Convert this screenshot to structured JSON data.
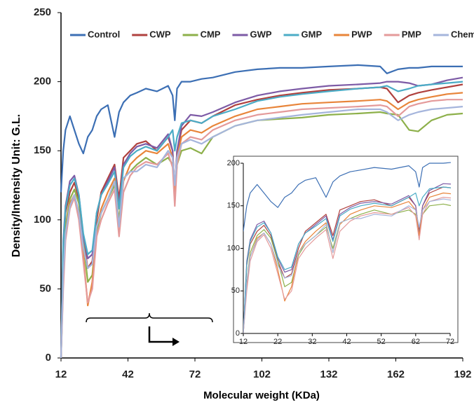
{
  "chart_data": {
    "type": "line",
    "x_label": "Molecular weight (KDa)",
    "y_label": "Density/Intensity Unit: G.L.",
    "xlim": [
      12,
      192
    ],
    "xticks": [
      12,
      42,
      72,
      102,
      132,
      162,
      192
    ],
    "ylim": [
      0,
      250
    ],
    "yticks": [
      0,
      50,
      100,
      150,
      200,
      250
    ],
    "legend": "top",
    "x": [
      12,
      13,
      14,
      16,
      18,
      20,
      22,
      24,
      26,
      28,
      30,
      33,
      36,
      38,
      40,
      43,
      46,
      50,
      55,
      60,
      62,
      63,
      64,
      66,
      70,
      75,
      80,
      90,
      100,
      110,
      120,
      132,
      145,
      155,
      158,
      163,
      168,
      172,
      178,
      185,
      192
    ],
    "series": [
      {
        "name": "Control",
        "color": "#3c6fb4",
        "values": [
          120,
          150,
          165,
          175,
          165,
          155,
          148,
          160,
          165,
          175,
          180,
          183,
          160,
          178,
          185,
          190,
          192,
          195,
          193,
          197,
          190,
          172,
          195,
          200,
          200,
          202,
          203,
          207,
          209,
          210,
          210,
          211,
          212,
          211,
          206,
          209,
          210,
          210,
          211,
          211,
          211
        ]
      },
      {
        "name": "CWP",
        "color": "#b0413e",
        "values": [
          0,
          80,
          105,
          120,
          127,
          115,
          85,
          65,
          70,
          100,
          120,
          130,
          140,
          115,
          145,
          150,
          155,
          157,
          150,
          160,
          150,
          120,
          150,
          165,
          172,
          170,
          175,
          183,
          187,
          190,
          192,
          194,
          195,
          196,
          195,
          185,
          190,
          192,
          194,
          196,
          198
        ]
      },
      {
        "name": "CMP",
        "color": "#8db04a",
        "values": [
          0,
          60,
          95,
          115,
          122,
          112,
          85,
          55,
          60,
          92,
          105,
          115,
          125,
          100,
          130,
          135,
          140,
          145,
          140,
          145,
          140,
          120,
          140,
          150,
          152,
          148,
          160,
          168,
          172,
          173,
          174,
          176,
          177,
          178,
          177,
          176,
          165,
          164,
          172,
          176,
          177
        ]
      },
      {
        "name": "GWP",
        "color": "#7d5ba6",
        "values": [
          0,
          85,
          110,
          128,
          132,
          118,
          88,
          72,
          75,
          105,
          118,
          128,
          138,
          110,
          140,
          148,
          153,
          155,
          152,
          162,
          150,
          118,
          150,
          168,
          176,
          175,
          178,
          185,
          190,
          193,
          195,
          197,
          198,
          199,
          200,
          200,
          199,
          197,
          198,
          201,
          203
        ]
      },
      {
        "name": "GMP",
        "color": "#4bacc6",
        "values": [
          0,
          82,
          108,
          125,
          130,
          118,
          90,
          75,
          78,
          105,
          118,
          126,
          135,
          108,
          138,
          146,
          150,
          153,
          150,
          160,
          165,
          150,
          160,
          170,
          172,
          170,
          175,
          180,
          186,
          189,
          191,
          193,
          195,
          196,
          197,
          193,
          195,
          197,
          198,
          199,
          200
        ]
      },
      {
        "name": "PWP",
        "color": "#e8853a",
        "values": [
          0,
          55,
          90,
          112,
          118,
          105,
          75,
          38,
          55,
          95,
          108,
          120,
          130,
          95,
          128,
          140,
          145,
          150,
          148,
          155,
          145,
          115,
          145,
          160,
          165,
          163,
          168,
          175,
          180,
          182,
          184,
          185,
          186,
          187,
          186,
          180,
          185,
          187,
          189,
          191,
          192
        ]
      },
      {
        "name": "PMP",
        "color": "#e49a9a",
        "values": [
          0,
          50,
          85,
          108,
          116,
          100,
          70,
          40,
          50,
          88,
          100,
          112,
          122,
          88,
          120,
          132,
          138,
          142,
          140,
          148,
          138,
          110,
          140,
          155,
          160,
          158,
          165,
          172,
          176,
          178,
          180,
          181,
          182,
          183,
          182,
          175,
          182,
          184,
          186,
          187,
          187
        ]
      },
      {
        "name": "Chemical",
        "color": "#a5b5dc",
        "values": [
          0,
          60,
          90,
          110,
          118,
          105,
          80,
          65,
          68,
          95,
          105,
          115,
          128,
          95,
          130,
          135,
          135,
          140,
          138,
          150,
          145,
          125,
          145,
          155,
          158,
          155,
          160,
          168,
          172,
          174,
          176,
          178,
          180,
          180,
          178,
          172,
          176,
          178,
          180,
          181,
          182
        ]
      }
    ],
    "inset": {
      "xlim": [
        12,
        72
      ],
      "xticks": [
        12,
        22,
        32,
        42,
        52,
        62,
        72
      ],
      "ylim": [
        0,
        200
      ],
      "yticks": [
        0,
        50,
        100,
        150,
        200
      ]
    }
  }
}
